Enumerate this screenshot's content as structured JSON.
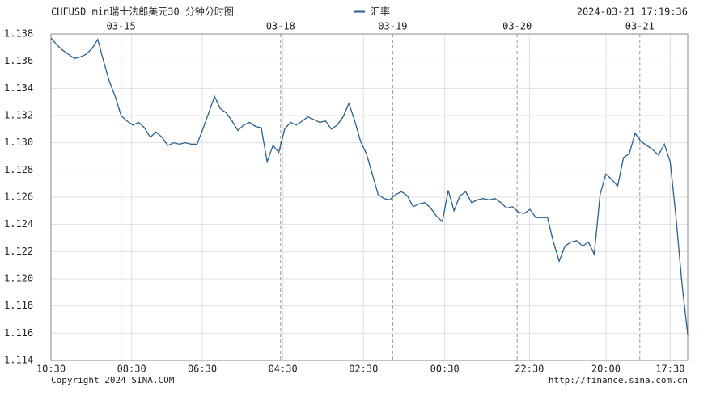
{
  "chart_data": {
    "type": "line",
    "title": "CHFUSD min瑞士法郎美元30  分钟分时图",
    "timestamp": "2024-03-21 17:19:36",
    "footer_left": "Copyright 2024 SINA.COM",
    "footer_right": "http://finance.sina.com.cn",
    "series": [
      {
        "name": "汇率",
        "color": "#2b5f8e",
        "values": [
          1.1377,
          1.1372,
          1.1368,
          1.1365,
          1.1362,
          1.1363,
          1.1365,
          1.1369,
          1.1376,
          1.136,
          1.1345,
          1.1334,
          1.132,
          1.1316,
          1.1313,
          1.1315,
          1.1311,
          1.1304,
          1.1308,
          1.1304,
          1.1298,
          1.13,
          1.1299,
          1.13,
          1.1299,
          1.1299,
          1.131,
          1.1322,
          1.1334,
          1.1325,
          1.1322,
          1.1316,
          1.1309,
          1.1313,
          1.1315,
          1.1312,
          1.1311,
          1.1286,
          1.1298,
          1.1293,
          1.131,
          1.1315,
          1.1313,
          1.1316,
          1.1319,
          1.1317,
          1.1315,
          1.1316,
          1.131,
          1.1313,
          1.1319,
          1.1329,
          1.1316,
          1.1301,
          1.1292,
          1.1277,
          1.1262,
          1.1259,
          1.1258,
          1.1262,
          1.1264,
          1.1261,
          1.1253,
          1.1255,
          1.1256,
          1.1252,
          1.1246,
          1.1242,
          1.1265,
          1.125,
          1.1261,
          1.1264,
          1.1256,
          1.1258,
          1.1259,
          1.1258,
          1.1259,
          1.1256,
          1.1252,
          1.1253,
          1.1249,
          1.1248,
          1.1251,
          1.1245,
          1.1245,
          1.1245,
          1.1227,
          1.1213,
          1.1224,
          1.1227,
          1.1228,
          1.1224,
          1.1227,
          1.1218,
          1.1262,
          1.1277,
          1.1273,
          1.1268,
          1.1289,
          1.1292,
          1.1307,
          1.1301,
          1.1298,
          1.1295,
          1.1291,
          1.1299,
          1.1286,
          1.1245,
          1.1197,
          1.1159
        ]
      }
    ],
    "xlim": [
      0,
      109
    ],
    "xticks": [
      {
        "value": 0,
        "label": "10:30"
      },
      {
        "value": 13.8,
        "label": "08:30"
      },
      {
        "value": 25.9,
        "label": "06:30"
      },
      {
        "value": 39.7,
        "label": "04:30"
      },
      {
        "value": 53.5,
        "label": "02:30"
      },
      {
        "value": 67.4,
        "label": "00:30"
      },
      {
        "value": 81.9,
        "label": "22:30"
      },
      {
        "value": 95,
        "label": "20:00"
      },
      {
        "value": 106,
        "label": "17:30"
      }
    ],
    "date_markers": [
      {
        "value": 12.0,
        "label": "03-15"
      },
      {
        "value": 39.3,
        "label": "03-18"
      },
      {
        "value": 58.5,
        "label": "03-19"
      },
      {
        "value": 79.8,
        "label": "03-20"
      },
      {
        "value": 100.8,
        "label": "03-21"
      }
    ],
    "ylim": [
      1.114,
      1.138
    ],
    "yticks": [
      1.114,
      1.116,
      1.118,
      {
        "value": 1.12,
        "label": "1.120"
      },
      1.122,
      1.124,
      1.126,
      1.128,
      {
        "value": 1.13,
        "label": "1.130"
      },
      1.132,
      1.134,
      1.136,
      1.138
    ],
    "grid": true
  }
}
